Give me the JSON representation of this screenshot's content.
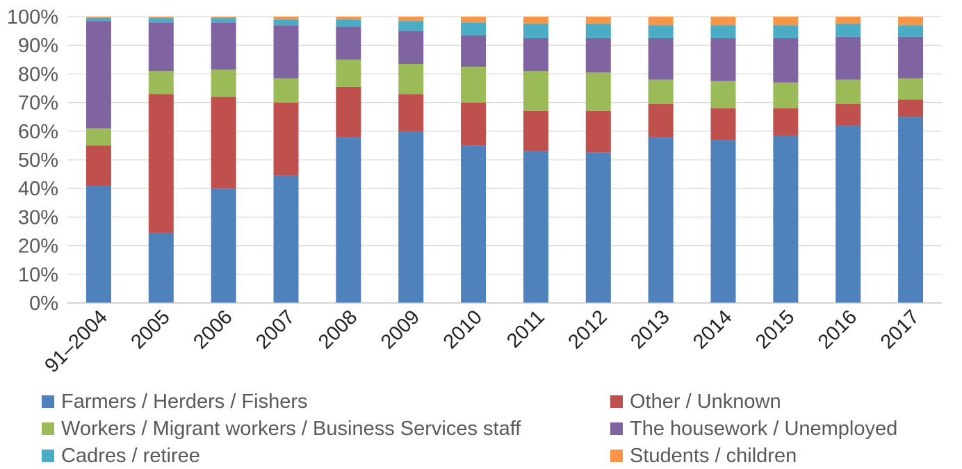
{
  "chart_data": {
    "type": "bar",
    "stacked": true,
    "percent": true,
    "categories": [
      "91–2004",
      "2005",
      "2006",
      "2007",
      "2008",
      "2009",
      "2010",
      "2011",
      "2012",
      "2013",
      "2014",
      "2015",
      "2016",
      "2017"
    ],
    "ylim": [
      0,
      100
    ],
    "yticks": [
      "0%",
      "10%",
      "20%",
      "30%",
      "40%",
      "50%",
      "60%",
      "70%",
      "80%",
      "90%",
      "100%"
    ],
    "grid": true,
    "legend_position": "bottom",
    "series": [
      {
        "name": "Farmers / Herders / Fishers",
        "color": "#4F81BD",
        "values": [
          41,
          24.5,
          40,
          44.5,
          58,
          60,
          55,
          53,
          52.5,
          58,
          57,
          58.5,
          62,
          65
        ]
      },
      {
        "name": "Other / Unknown",
        "color": "#C0504D",
        "values": [
          14,
          48.5,
          32,
          25.5,
          17.5,
          13,
          15,
          14,
          14.5,
          11.5,
          11,
          9.5,
          7.5,
          6
        ]
      },
      {
        "name": "Workers / Migrant workers / Business Services staff",
        "color": "#9BBB59",
        "values": [
          6,
          8,
          9.5,
          8.5,
          9.5,
          10.5,
          12.5,
          14,
          13.5,
          8.5,
          9.5,
          9,
          8.5,
          7.5
        ]
      },
      {
        "name": "The housework / Unemployed",
        "color": "#8064A2",
        "values": [
          37.5,
          17,
          16.5,
          18.5,
          11.5,
          11.5,
          11,
          11.5,
          12,
          14.5,
          15,
          15.5,
          15,
          14.5
        ]
      },
      {
        "name": "Cadres / retiree",
        "color": "#4BACC6",
        "values": [
          1,
          1.5,
          1.5,
          2,
          2.5,
          3.5,
          4.5,
          5,
          5,
          4.5,
          4.5,
          4.5,
          4.5,
          4
        ]
      },
      {
        "name": "Students / children",
        "color": "#F79646",
        "values": [
          0.5,
          0.5,
          0.5,
          1,
          1,
          1.5,
          2,
          2.5,
          2.5,
          3,
          3,
          3,
          2.5,
          3
        ]
      }
    ]
  }
}
